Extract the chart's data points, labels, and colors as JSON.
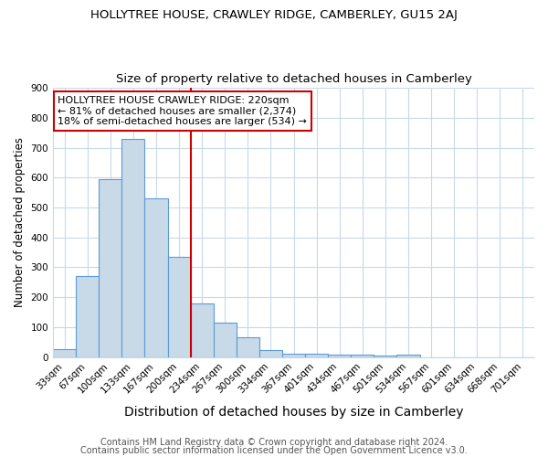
{
  "title": "HOLLYTREE HOUSE, CRAWLEY RIDGE, CAMBERLEY, GU15 2AJ",
  "subtitle": "Size of property relative to detached houses in Camberley",
  "xlabel": "Distribution of detached houses by size in Camberley",
  "ylabel": "Number of detached properties",
  "bar_labels": [
    "33sqm",
    "67sqm",
    "100sqm",
    "133sqm",
    "167sqm",
    "200sqm",
    "234sqm",
    "267sqm",
    "300sqm",
    "334sqm",
    "367sqm",
    "401sqm",
    "434sqm",
    "467sqm",
    "501sqm",
    "534sqm",
    "567sqm",
    "601sqm",
    "634sqm",
    "668sqm",
    "701sqm"
  ],
  "bar_values": [
    25,
    270,
    595,
    730,
    530,
    335,
    180,
    115,
    65,
    22,
    12,
    12,
    8,
    8,
    5,
    7,
    0,
    0,
    0,
    0,
    0
  ],
  "bar_color": "#c8d9e8",
  "bar_edge_color": "#5b9bd5",
  "vline_color": "#cc0000",
  "annotation_lines": [
    "HOLLYTREE HOUSE CRAWLEY RIDGE: 220sqm",
    "← 81% of detached houses are smaller (2,374)",
    "18% of semi-detached houses are larger (534) →"
  ],
  "annotation_box_color": "#cc0000",
  "ylim": [
    0,
    900
  ],
  "yticks": [
    0,
    100,
    200,
    300,
    400,
    500,
    600,
    700,
    800,
    900
  ],
  "footnote1": "Contains HM Land Registry data © Crown copyright and database right 2024.",
  "footnote2": "Contains public sector information licensed under the Open Government Licence v3.0.",
  "title_fontsize": 9.5,
  "subtitle_fontsize": 9.5,
  "xlabel_fontsize": 10,
  "ylabel_fontsize": 8.5,
  "tick_fontsize": 7.5,
  "annotation_fontsize": 8,
  "footnote_fontsize": 7,
  "background_color": "#ffffff",
  "grid_color": "#c8d9e8"
}
